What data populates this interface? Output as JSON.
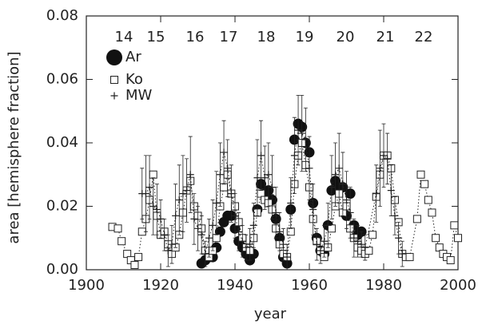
{
  "chart_data": {
    "type": "scatter",
    "xlabel": "year",
    "ylabel": "area [hemisphere fraction]",
    "xlim": [
      1900,
      2000
    ],
    "xticks": [
      1900,
      1920,
      1940,
      1960,
      1980,
      2000
    ],
    "ylim": [
      0,
      0.08
    ],
    "yticks": [
      {
        "value": 0,
        "label": "0.00"
      },
      0.02,
      0.04,
      0.06,
      0.08
    ],
    "annotations": [
      "14",
      "15",
      "16",
      "17",
      "18",
      "19",
      "20",
      "21",
      "22"
    ],
    "series": [
      {
        "name": "Ar",
        "marker": "circle",
        "linestyle": "none",
        "color": "#111",
        "x": [
          1931,
          1932,
          1933,
          1934,
          1935,
          1936,
          1937,
          1938,
          1939,
          1940,
          1941,
          1942,
          1943,
          1944,
          1945,
          1946,
          1947,
          1948,
          1949,
          1950,
          1951,
          1952,
          1953,
          1954,
          1955,
          1956,
          1957,
          1958,
          1959,
          1960,
          1961,
          1962,
          1963,
          1964,
          1965,
          1966,
          1967,
          1968,
          1969,
          1970,
          1971,
          1972,
          1973,
          1974
        ],
        "values": [
          0.002,
          0.003,
          0.004,
          0.004,
          0.007,
          0.012,
          0.015,
          0.017,
          0.017,
          0.013,
          0.009,
          0.007,
          0.005,
          0.003,
          0.005,
          0.019,
          0.027,
          0.024,
          0.025,
          0.022,
          0.016,
          0.01,
          0.004,
          0.002,
          0.019,
          0.041,
          0.046,
          0.045,
          0.04,
          0.037,
          0.021,
          0.01,
          0.006,
          0.005,
          0.014,
          0.025,
          0.028,
          0.026,
          0.026,
          0.017,
          0.024,
          0.014,
          0.011,
          0.012
        ]
      },
      {
        "name": "Ko",
        "marker": "square",
        "linestyle": "dotted",
        "color": "#222",
        "x": [
          1907,
          1908.5,
          1909.5,
          1911,
          1912,
          1913,
          1914,
          1915,
          1916,
          1917,
          1918,
          1919,
          1920,
          1921,
          1922,
          1923,
          1924,
          1925,
          1926,
          1927,
          1928,
          1929,
          1930,
          1931,
          1932,
          1933,
          1934,
          1935,
          1936,
          1937,
          1938,
          1939,
          1940,
          1941,
          1942,
          1943,
          1944,
          1945,
          1946,
          1947,
          1948,
          1949,
          1950,
          1951,
          1952,
          1953,
          1954,
          1955,
          1956,
          1957,
          1958,
          1959,
          1960,
          1961,
          1962,
          1963,
          1964,
          1965,
          1966,
          1967,
          1968,
          1969,
          1970,
          1971,
          1972,
          1973,
          1974,
          1975,
          1976,
          1977,
          1978,
          1979,
          1980,
          1981,
          1982,
          1983,
          1984,
          1985,
          1986,
          1987,
          1989,
          1990,
          1991,
          1992,
          1993,
          1994,
          1995,
          1996,
          1997,
          1998,
          1999,
          2000
        ],
        "values": [
          0.0135,
          0.013,
          0.009,
          0.005,
          0.003,
          0.0015,
          0.004,
          0.012,
          0.016,
          0.022,
          0.03,
          0.017,
          0.011,
          0.012,
          0.008,
          0.005,
          0.007,
          0.011,
          0.018,
          0.025,
          0.028,
          0.02,
          0.017,
          0.013,
          0.006,
          0.004,
          0.006,
          0.01,
          0.02,
          0.026,
          0.03,
          0.024,
          0.02,
          0.015,
          0.01,
          0.007,
          0.006,
          0.01,
          0.018,
          0.024,
          0.022,
          0.021,
          0.019,
          0.013,
          0.008,
          0.005,
          0.004,
          0.012,
          0.027,
          0.036,
          0.04,
          0.033,
          0.026,
          0.016,
          0.009,
          0.006,
          0.004,
          0.007,
          0.013,
          0.02,
          0.024,
          0.018,
          0.02,
          0.013,
          0.01,
          0.007,
          0.006,
          0.005,
          0.006,
          0.011,
          0.023,
          0.03,
          0.036,
          0.036,
          0.032,
          0.022,
          0.015,
          0.005,
          0.004,
          0.004,
          0.016,
          0.03,
          0.027,
          0.022,
          0.018,
          0.01,
          0.007,
          0.005,
          0.004,
          0.003,
          0.014,
          0.01
        ]
      },
      {
        "name": "MW",
        "marker": "plus",
        "linestyle": "dotted",
        "color": "#222",
        "x": [
          1915,
          1916,
          1917,
          1918,
          1919,
          1920,
          1921,
          1922,
          1923,
          1924,
          1925,
          1926,
          1927,
          1928,
          1929,
          1930,
          1931,
          1932,
          1933,
          1934,
          1935,
          1936,
          1937,
          1938,
          1939,
          1940,
          1941,
          1942,
          1943,
          1944,
          1945,
          1946,
          1947,
          1948,
          1949,
          1950,
          1951,
          1952,
          1953,
          1954,
          1955,
          1956,
          1957,
          1958,
          1959,
          1960,
          1961,
          1962,
          1963,
          1964,
          1965,
          1966,
          1967,
          1968,
          1969,
          1970,
          1971,
          1972,
          1973,
          1974,
          1975,
          1978,
          1979,
          1980,
          1981,
          1982,
          1983,
          1984,
          1985
        ],
        "values": [
          0.024,
          0.024,
          0.026,
          0.02,
          0.019,
          0.016,
          0.011,
          0.006,
          0.008,
          0.017,
          0.022,
          0.024,
          0.025,
          0.03,
          0.016,
          0.013,
          0.011,
          0.005,
          0.01,
          0.014,
          0.021,
          0.03,
          0.037,
          0.032,
          0.024,
          0.017,
          0.012,
          0.009,
          0.007,
          0.008,
          0.014,
          0.029,
          0.036,
          0.029,
          0.03,
          0.026,
          0.018,
          0.012,
          0.008,
          0.004,
          0.021,
          0.036,
          0.044,
          0.043,
          0.041,
          0.032,
          0.019,
          0.008,
          0.006,
          0.009,
          0.014,
          0.026,
          0.03,
          0.032,
          0.027,
          0.022,
          0.018,
          0.01,
          0.009,
          0.008,
          0.007,
          0.024,
          0.032,
          0.036,
          0.035,
          0.025,
          0.017,
          0.01,
          0.005
        ],
        "errors": [
          0.008,
          0.012,
          0.01,
          0.009,
          0.008,
          0.006,
          0.005,
          0.005,
          0.006,
          0.01,
          0.011,
          0.012,
          0.01,
          0.012,
          0.008,
          0.007,
          0.006,
          0.004,
          0.006,
          0.008,
          0.01,
          0.01,
          0.01,
          0.009,
          0.009,
          0.007,
          0.006,
          0.005,
          0.004,
          0.005,
          0.007,
          0.012,
          0.011,
          0.01,
          0.01,
          0.01,
          0.008,
          0.006,
          0.005,
          0.004,
          0.008,
          0.012,
          0.011,
          0.012,
          0.01,
          0.01,
          0.008,
          0.005,
          0.004,
          0.005,
          0.007,
          0.01,
          0.01,
          0.011,
          0.01,
          0.009,
          0.008,
          0.006,
          0.005,
          0.004,
          0.004,
          0.009,
          0.012,
          0.01,
          0.008,
          0.008,
          0.006,
          0.005,
          0.004
        ]
      }
    ]
  }
}
